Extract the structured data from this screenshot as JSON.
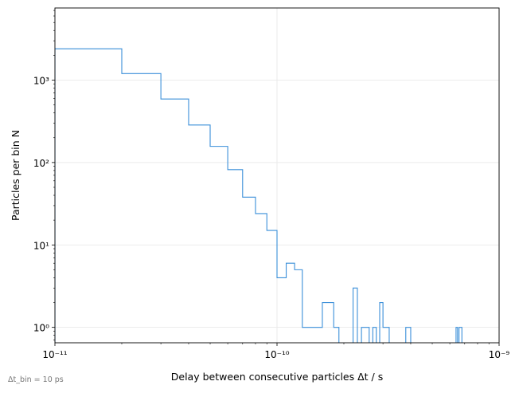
{
  "chart_data": {
    "type": "histogram",
    "title": "",
    "xlabel": "Delay between consecutive particles   Δt / s",
    "ylabel": "Particles per bin   N",
    "xscale": "log",
    "yscale": "log",
    "xlim": [
      1e-11,
      1e-09
    ],
    "ylim": [
      0.65,
      7500
    ],
    "grid": true,
    "line_color": "#3a8fd9",
    "footnote": "Δt_bin = 10 ps",
    "x_ticks": [
      {
        "value": 1e-11,
        "label": "10⁻¹¹"
      },
      {
        "value": 1e-10,
        "label": "10⁻¹⁰"
      },
      {
        "value": 1e-09,
        "label": "10⁻⁹"
      }
    ],
    "y_ticks": [
      {
        "value": 1,
        "label": "10⁰"
      },
      {
        "value": 10,
        "label": "10¹"
      },
      {
        "value": 100,
        "label": "10²"
      },
      {
        "value": 1000,
        "label": "10³"
      }
    ],
    "bin_edges_ps": [
      10,
      20,
      30,
      40,
      50,
      60,
      70,
      80,
      90,
      100,
      110,
      120,
      130,
      160,
      170,
      180,
      190,
      200,
      220,
      230,
      240,
      250,
      260,
      270,
      280,
      290,
      300,
      310,
      320,
      340,
      370,
      380,
      390,
      400,
      640,
      650,
      660,
      670,
      680
    ],
    "counts": [
      2400,
      1200,
      590,
      285,
      157,
      82,
      38,
      24,
      15,
      4,
      6,
      5,
      1,
      2,
      2,
      1,
      0,
      0,
      3,
      0,
      1,
      1,
      0,
      1,
      0,
      2,
      1,
      1,
      0,
      0,
      0,
      1,
      1,
      0,
      1,
      0,
      1,
      1
    ]
  }
}
